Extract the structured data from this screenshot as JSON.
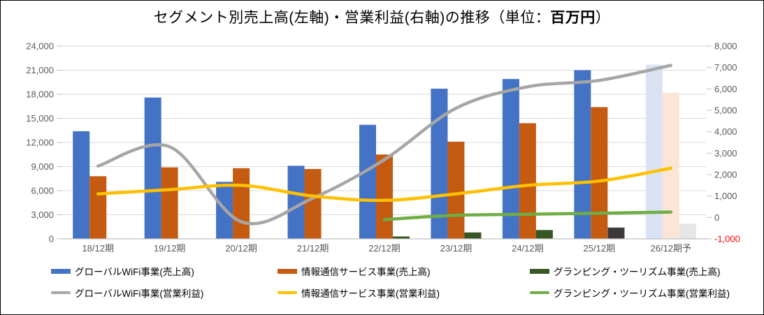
{
  "title": {
    "prefix": "セグメント別売上高(左軸)・営業利益(右軸)の推移（単位：",
    "unit": "百万円",
    "suffix": "）"
  },
  "chart_data": {
    "type": "bar",
    "subtype": "combo-bar-line-dual-axis",
    "title": "セグメント別売上高(左軸)・営業利益(右軸)の推移（単位：百万円）",
    "unit": "百万円",
    "categories": [
      "18/12期",
      "19/12期",
      "20/12期",
      "21/12期",
      "22/12期",
      "23/12期",
      "24/12期",
      "25/12期",
      "26/12期予"
    ],
    "bar_series": [
      {
        "name": "グローバルWiFi事業(売上高)",
        "axis": "left",
        "color": "#4472C4",
        "values": [
          13400,
          17600,
          7100,
          9100,
          14200,
          18700,
          19900,
          21000,
          21700
        ],
        "overrides": {
          "8": {
            "fill": "#DAE3F3"
          }
        }
      },
      {
        "name": "情報通信サービス事業(売上高)",
        "axis": "left",
        "color": "#C55A11",
        "values": [
          7800,
          8900,
          8800,
          8700,
          10500,
          12100,
          14400,
          16400,
          18200
        ],
        "overrides": {
          "8": {
            "fill": "#FBE5D6"
          }
        }
      },
      {
        "name": "グランピング・ツーリズム事業(売上高)",
        "axis": "left",
        "color": "#375623",
        "values": [
          null,
          null,
          null,
          null,
          300,
          800,
          1100,
          1400,
          1900
        ],
        "overrides": {
          "7": {
            "fill": "#3B3838",
            "dashed": true
          },
          "8": {
            "fill": "#E7E6E6"
          }
        }
      }
    ],
    "line_series": [
      {
        "name": "グローバルWiFi事業(営業利益)",
        "axis": "right",
        "color": "#A6A6A6",
        "values": [
          2400,
          3300,
          -200,
          900,
          2700,
          5100,
          6100,
          6400,
          7100
        ]
      },
      {
        "name": "情報通信サービス事業(営業利益)",
        "axis": "right",
        "color": "#FFC000",
        "values": [
          1100,
          1300,
          1500,
          1000,
          800,
          1100,
          1500,
          1700,
          2300
        ]
      },
      {
        "name": "グランピング・ツーリズム事業(営業利益)",
        "axis": "right",
        "color": "#70AD47",
        "values": [
          null,
          null,
          null,
          null,
          -100,
          100,
          150,
          200,
          250
        ]
      }
    ],
    "left_axis": {
      "min": 0,
      "max": 24000,
      "step": 3000,
      "tick_labels": [
        "24,000",
        "21,000",
        "18,000",
        "15,000",
        "12,000",
        "9,000",
        "6,000",
        "3,000",
        "0"
      ]
    },
    "right_axis": {
      "min": -1000,
      "max": 8000,
      "step": 1000,
      "tick_labels": [
        "8,000",
        "7,000",
        "6,000",
        "5,000",
        "4,000",
        "3,000",
        "2,000",
        "1,000",
        "0",
        "-1,000"
      ],
      "negative_color": "#FF0000"
    },
    "grid": "horizontal",
    "legend_position": "bottom",
    "legend": {
      "items": [
        {
          "label": "グローバルWiFi事業(売上高)",
          "swatch": "bar",
          "color": "#4472C4"
        },
        {
          "label": "情報通信サービス事業(売上高)",
          "swatch": "bar",
          "color": "#C55A11"
        },
        {
          "label": "グランピング・ツーリズム事業(売上高)",
          "swatch": "bar",
          "color": "#375623"
        },
        {
          "label": "グローバルWiFi事業(営業利益)",
          "swatch": "line",
          "color": "#A6A6A6"
        },
        {
          "label": "情報通信サービス事業(営業利益)",
          "swatch": "line",
          "color": "#FFC000"
        },
        {
          "label": "グランピング・ツーリズム事業(営業利益)",
          "swatch": "line",
          "color": "#70AD47"
        }
      ]
    }
  }
}
